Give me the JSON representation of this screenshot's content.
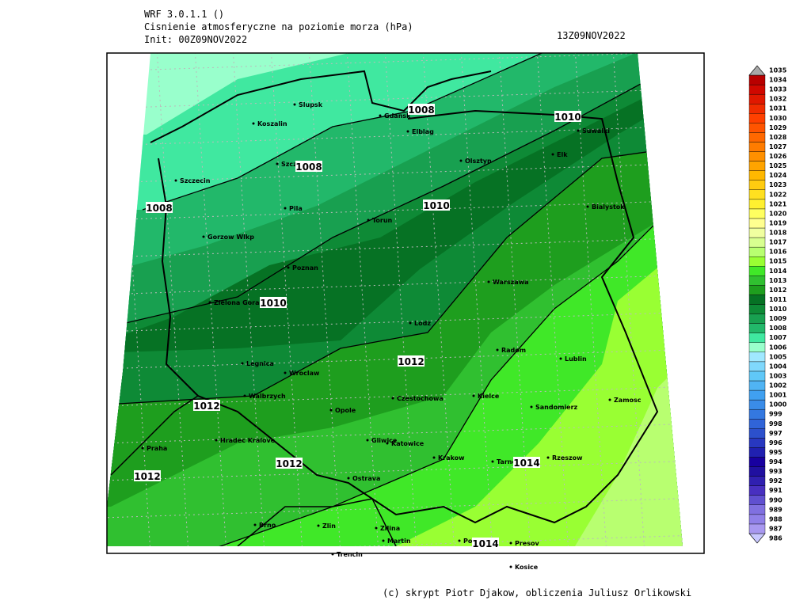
{
  "header": {
    "model": "WRF 3.0.1.1 ()",
    "title": "Cisnienie atmosferyczne na poziomie morza (hPa)",
    "init": "Init: 00Z09NOV2022",
    "valid": "13Z09NOV2022"
  },
  "map": {
    "cities": [
      "Slupsk",
      "Koszalin",
      "Gdansk",
      "Elblag",
      "Olsztyn",
      "Suwalki",
      "Elk",
      "Szczecin",
      "Szczecinek",
      "Pila",
      "Torun",
      "Bialystok",
      "Gorzow Wlkp",
      "Poznan",
      "Warszawa",
      "Zielona Gora",
      "Lodz",
      "Radom",
      "Lublin",
      "Legnica",
      "Wroclaw",
      "Walbrzych",
      "Opole",
      "Czestochowa",
      "Kielce",
      "Sandomierz",
      "Zamosc",
      "Hradec Kralove",
      "Gliwice",
      "Katowice",
      "Praha",
      "Krakow",
      "Tarnow",
      "Rzeszow",
      "Ostrava",
      "Brno",
      "Zlin",
      "Zilina",
      "Martin",
      "Poprad",
      "Presov",
      "Trencin",
      "Kosice"
    ],
    "contour_labels": [
      "1008",
      "1008",
      "1008",
      "1010",
      "1010",
      "1010",
      "1012",
      "1012",
      "1012",
      "1012",
      "1014",
      "1014"
    ]
  },
  "legend": {
    "levels": [
      986,
      987,
      988,
      989,
      990,
      991,
      992,
      993,
      994,
      995,
      996,
      997,
      998,
      999,
      1000,
      1001,
      1002,
      1003,
      1004,
      1005,
      1006,
      1007,
      1008,
      1009,
      1010,
      1011,
      1012,
      1013,
      1014,
      1015,
      1016,
      1017,
      1018,
      1019,
      1020,
      1021,
      1022,
      1023,
      1024,
      1025,
      1026,
      1027,
      1028,
      1029,
      1030,
      1031,
      1032,
      1033,
      1034,
      1035
    ],
    "colors": [
      "#c8c8ff",
      "#a898f0",
      "#9080e8",
      "#8070e0",
      "#6050d0",
      "#4830c0",
      "#3020b0",
      "#2010a0",
      "#1800a0",
      "#2020b0",
      "#2838c0",
      "#2c50cc",
      "#3064d8",
      "#3478e0",
      "#3a8ce8",
      "#40a0f0",
      "#50b4f4",
      "#60c8f8",
      "#80d8fc",
      "#a0e8ff",
      "#99ffcc",
      "#40e8a0",
      "#22b86a",
      "#18a050",
      "#0e8a36",
      "#067224",
      "#1e9e1e",
      "#30c030",
      "#40e828",
      "#99ff33",
      "#b8ff70",
      "#d8ff90",
      "#f0ffa0",
      "#ffff90",
      "#ffff60",
      "#fff030",
      "#ffe020",
      "#ffcc10",
      "#ffb800",
      "#ffa400",
      "#ff9000",
      "#ff7c00",
      "#ff6800",
      "#ff5400",
      "#ff4000",
      "#f02c00",
      "#e01800",
      "#d00800",
      "#b80000",
      "#a8a8a8"
    ]
  },
  "footer": "(c) skrypt Piotr Djakow, obliczenia Juliusz Orlikowski"
}
